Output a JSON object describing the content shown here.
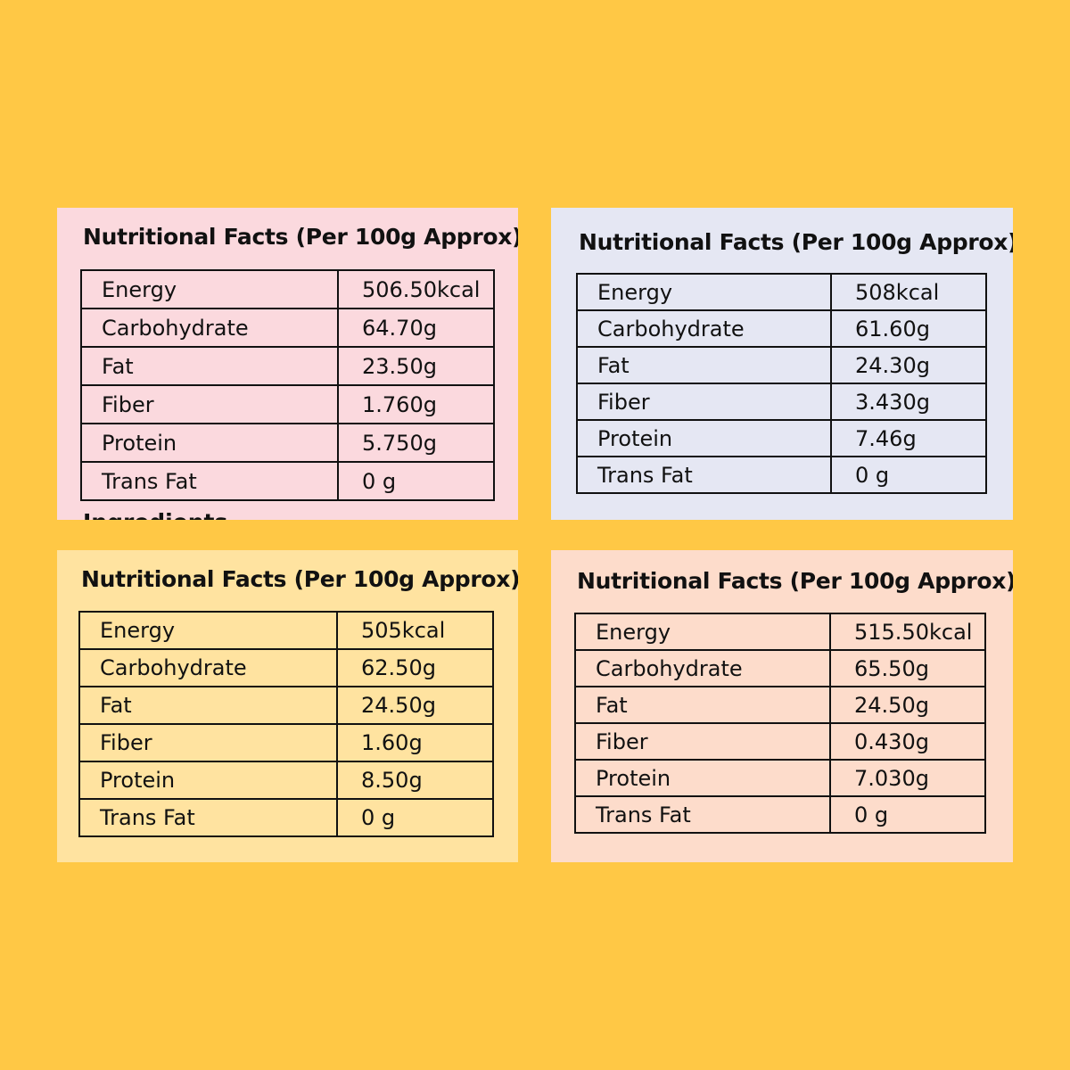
{
  "cards": [
    {
      "title": "Nutritional Facts (Per 100g Approx)",
      "background": "#FBD9DE",
      "rows": [
        {
          "label": "Energy",
          "value": "506.50kcal"
        },
        {
          "label": "Carbohydrate",
          "value": "64.70g"
        },
        {
          "label": "Fat",
          "value": "23.50g"
        },
        {
          "label": "Fiber",
          "value": "1.760g"
        },
        {
          "label": "Protein",
          "value": "5.750g"
        },
        {
          "label": "Trans Fat",
          "value": "0 g"
        }
      ],
      "cutoff_text": "Ingredients"
    },
    {
      "title": "Nutritional Facts (Per 100g Approx)",
      "background": "#E5E7F3",
      "rows": [
        {
          "label": "Energy",
          "value": "508kcal"
        },
        {
          "label": "Carbohydrate",
          "value": "61.60g"
        },
        {
          "label": "Fat",
          "value": "24.30g"
        },
        {
          "label": "Fiber",
          "value": "3.430g"
        },
        {
          "label": "Protein",
          "value": "7.46g"
        },
        {
          "label": "Trans Fat",
          "value": "0 g"
        }
      ]
    },
    {
      "title": "Nutritional Facts (Per 100g Approx)",
      "background": "#FFE3A0",
      "rows": [
        {
          "label": "Energy",
          "value": "505kcal"
        },
        {
          "label": "Carbohydrate",
          "value": "62.50g"
        },
        {
          "label": "Fat",
          "value": "24.50g"
        },
        {
          "label": "Fiber",
          "value": "1.60g"
        },
        {
          "label": "Protein",
          "value": "8.50g"
        },
        {
          "label": "Trans Fat",
          "value": "0 g"
        }
      ]
    },
    {
      "title": "Nutritional Facts (Per 100g Approx)",
      "background": "#FDDCCB",
      "rows": [
        {
          "label": "Energy",
          "value": "515.50kcal"
        },
        {
          "label": "Carbohydrate",
          "value": "65.50g"
        },
        {
          "label": "Fat",
          "value": "24.50g"
        },
        {
          "label": "Fiber",
          "value": "0.430g"
        },
        {
          "label": "Protein",
          "value": "7.030g"
        },
        {
          "label": "Trans Fat",
          "value": "0 g"
        }
      ]
    }
  ],
  "page_background": "#FFC845"
}
